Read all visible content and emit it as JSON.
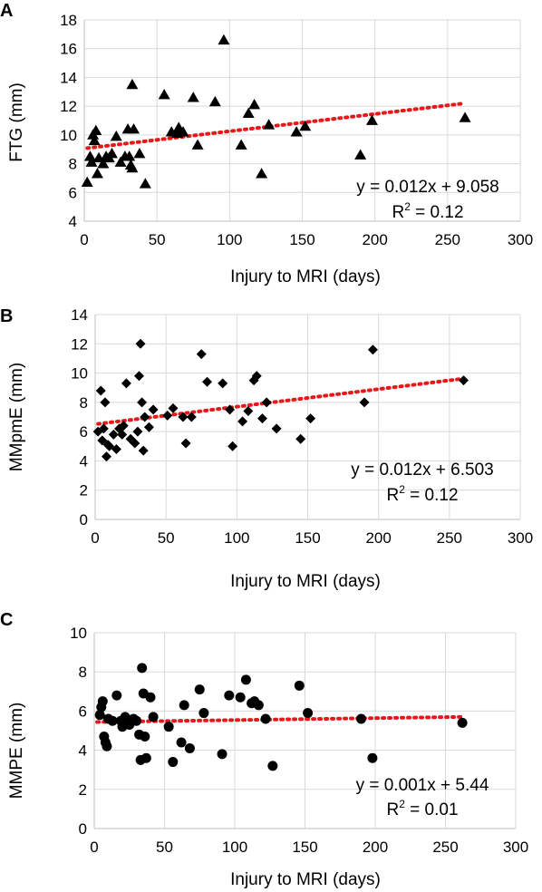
{
  "chart_data": [
    {
      "type": "scatter",
      "panel": "A",
      "ylabel": "FTG  (mm)",
      "xlabel": "Injury to MRI (days)",
      "xlim": [
        0,
        300
      ],
      "ylim": [
        4,
        18
      ],
      "xticks": [
        0,
        50,
        100,
        150,
        200,
        250,
        300
      ],
      "yticks": [
        4,
        6,
        8,
        10,
        12,
        14,
        16,
        18
      ],
      "grid": true,
      "marker": "triangle",
      "trend": {
        "slope": 0.012,
        "intercept": 9.058,
        "x_range": [
          2,
          262
        ]
      },
      "equation": "y = 0.012x + 9.058",
      "r2_prefix": "R",
      "r2_sup": "2",
      "r2_suffix": " = 0.12",
      "points": [
        [
          2,
          6.7
        ],
        [
          4,
          8.5
        ],
        [
          5,
          8.1
        ],
        [
          6,
          10.0
        ],
        [
          7,
          9.6
        ],
        [
          8,
          10.3
        ],
        [
          9,
          7.3
        ],
        [
          10,
          8.4
        ],
        [
          13,
          8.0
        ],
        [
          15,
          8.5
        ],
        [
          17,
          8.4
        ],
        [
          19,
          8.7
        ],
        [
          22,
          9.9
        ],
        [
          25,
          8.1
        ],
        [
          28,
          8.5
        ],
        [
          30,
          10.4
        ],
        [
          31,
          8.5
        ],
        [
          32,
          7.9
        ],
        [
          33,
          13.5
        ],
        [
          33,
          7.7
        ],
        [
          34,
          10.4
        ],
        [
          38,
          8.7
        ],
        [
          42,
          6.6
        ],
        [
          55,
          12.8
        ],
        [
          60,
          10.2
        ],
        [
          64,
          10.1
        ],
        [
          65,
          10.5
        ],
        [
          68,
          10.2
        ],
        [
          75,
          12.6
        ],
        [
          78,
          9.3
        ],
        [
          90,
          12.3
        ],
        [
          96,
          16.6
        ],
        [
          108,
          9.3
        ],
        [
          113,
          11.5
        ],
        [
          117,
          12.1
        ],
        [
          122,
          7.3
        ],
        [
          127,
          10.7
        ],
        [
          146,
          10.2
        ],
        [
          152,
          10.6
        ],
        [
          190,
          8.6
        ],
        [
          198,
          11.0
        ],
        [
          262,
          11.2
        ]
      ]
    },
    {
      "type": "scatter",
      "panel": "B",
      "ylabel": "MMpmE  (mm)",
      "xlabel": "Injury to MRI (days)",
      "xlim": [
        0,
        300
      ],
      "ylim": [
        0,
        14
      ],
      "xticks": [
        0,
        50,
        100,
        150,
        200,
        250,
        300
      ],
      "yticks": [
        0,
        2,
        4,
        6,
        8,
        10,
        12,
        14
      ],
      "grid": true,
      "marker": "diamond",
      "trend": {
        "slope": 0.012,
        "intercept": 6.503,
        "x_range": [
          2,
          260
        ]
      },
      "equation": "y = 0.012x + 6.503",
      "r2_prefix": "R",
      "r2_sup": "2",
      "r2_suffix": " = 0.12",
      "points": [
        [
          2,
          6.0
        ],
        [
          4,
          8.8
        ],
        [
          5,
          5.4
        ],
        [
          6,
          6.2
        ],
        [
          7,
          8.0
        ],
        [
          8,
          4.3
        ],
        [
          9,
          5.1
        ],
        [
          10,
          5.0
        ],
        [
          13,
          5.8
        ],
        [
          15,
          4.8
        ],
        [
          17,
          6.2
        ],
        [
          19,
          5.8
        ],
        [
          20,
          6.4
        ],
        [
          22,
          9.3
        ],
        [
          25,
          5.5
        ],
        [
          28,
          5.2
        ],
        [
          30,
          6.0
        ],
        [
          31,
          9.8
        ],
        [
          32,
          12.0
        ],
        [
          33,
          8.0
        ],
        [
          34,
          4.7
        ],
        [
          35,
          7.0
        ],
        [
          38,
          6.3
        ],
        [
          41,
          7.5
        ],
        [
          51,
          7.1
        ],
        [
          55,
          7.6
        ],
        [
          62,
          7.0
        ],
        [
          64,
          5.2
        ],
        [
          68,
          7.0
        ],
        [
          75,
          11.3
        ],
        [
          79,
          9.4
        ],
        [
          90,
          9.3
        ],
        [
          95,
          7.5
        ],
        [
          97,
          5.0
        ],
        [
          104,
          6.7
        ],
        [
          108,
          7.4
        ],
        [
          112,
          9.5
        ],
        [
          114,
          9.8
        ],
        [
          118,
          6.9
        ],
        [
          121,
          8.0
        ],
        [
          128,
          6.2
        ],
        [
          145,
          5.5
        ],
        [
          152,
          6.9
        ],
        [
          190,
          8.0
        ],
        [
          196,
          11.6
        ],
        [
          260,
          9.5
        ]
      ]
    },
    {
      "type": "scatter",
      "panel": "C",
      "ylabel": "MMPE  (mm)",
      "xlabel": "Injury to MRI (days)",
      "xlim": [
        0,
        300
      ],
      "ylim": [
        0,
        10
      ],
      "xticks": [
        0,
        50,
        100,
        150,
        200,
        250,
        300
      ],
      "yticks": [
        0,
        2,
        4,
        6,
        8,
        10
      ],
      "grid": true,
      "marker": "circle",
      "trend": {
        "slope": 0.001,
        "intercept": 5.44,
        "x_range": [
          2,
          262
        ]
      },
      "equation": "y = 0.001x + 5.44",
      "r2_prefix": "R",
      "r2_sup": "2",
      "r2_suffix": " = 0.01",
      "points": [
        [
          4,
          5.8
        ],
        [
          5,
          6.2
        ],
        [
          6,
          6.5
        ],
        [
          7,
          4.7
        ],
        [
          8,
          4.4
        ],
        [
          9,
          4.2
        ],
        [
          10,
          5.6
        ],
        [
          13,
          5.5
        ],
        [
          16,
          6.8
        ],
        [
          19,
          5.5
        ],
        [
          20,
          5.2
        ],
        [
          22,
          5.7
        ],
        [
          25,
          5.3
        ],
        [
          28,
          5.6
        ],
        [
          30,
          5.5
        ],
        [
          32,
          4.8
        ],
        [
          33,
          3.5
        ],
        [
          34,
          8.2
        ],
        [
          35,
          6.9
        ],
        [
          36,
          4.7
        ],
        [
          37,
          3.6
        ],
        [
          40,
          6.7
        ],
        [
          42,
          5.7
        ],
        [
          53,
          5.2
        ],
        [
          56,
          3.4
        ],
        [
          62,
          4.4
        ],
        [
          64,
          6.3
        ],
        [
          68,
          4.1
        ],
        [
          75,
          7.1
        ],
        [
          78,
          5.9
        ],
        [
          91,
          3.8
        ],
        [
          96,
          6.8
        ],
        [
          104,
          6.7
        ],
        [
          108,
          7.6
        ],
        [
          112,
          6.4
        ],
        [
          114,
          6.5
        ],
        [
          117,
          6.3
        ],
        [
          122,
          5.6
        ],
        [
          127,
          3.2
        ],
        [
          146,
          7.3
        ],
        [
          152,
          5.9
        ],
        [
          190,
          5.6
        ],
        [
          198,
          3.6
        ],
        [
          262,
          5.4
        ]
      ]
    }
  ]
}
